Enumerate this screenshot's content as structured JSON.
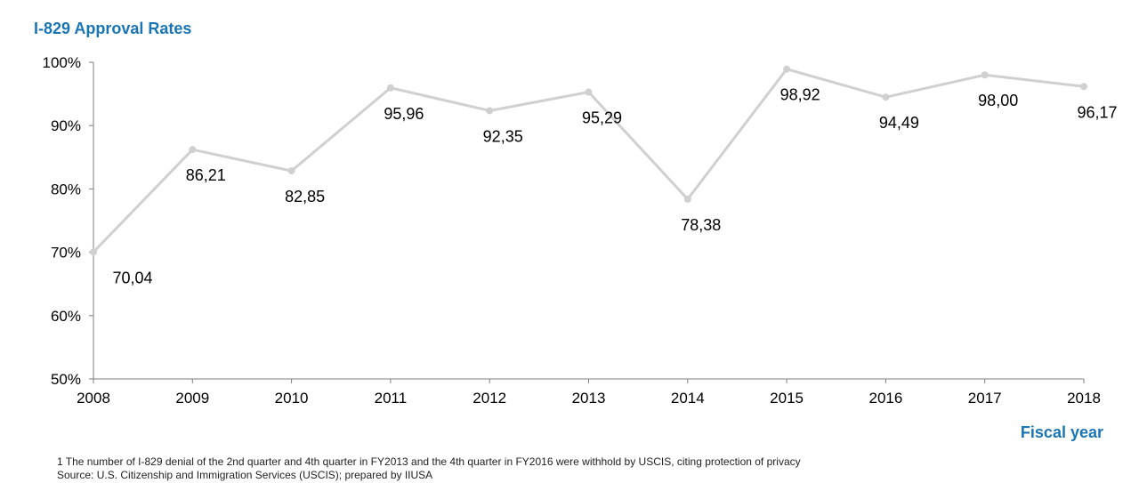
{
  "chart_data": {
    "type": "line",
    "title": "I-829 Approval Rates",
    "xlabel": "Fiscal year",
    "ylabel": "",
    "categories": [
      "2008",
      "2009",
      "2010",
      "2011",
      "2012",
      "2013",
      "2014",
      "2015",
      "2016",
      "2017",
      "2018"
    ],
    "series": [
      {
        "values": [
          70.04,
          86.21,
          82.85,
          95.96,
          92.35,
          95.29,
          78.38,
          98.92,
          94.49,
          98.0,
          96.17
        ],
        "data_labels": [
          "70,04",
          "86,21",
          "82,85",
          "95,96",
          "92,35",
          "95,29",
          "78,38",
          "98,92",
          "94,49",
          "98,00",
          "96,17"
        ],
        "color": "#d0d0d0"
      }
    ],
    "ylim": [
      50,
      100
    ],
    "yticks": [
      50,
      60,
      70,
      80,
      90,
      100
    ],
    "ytick_labels": [
      "50%",
      "60%",
      "70%",
      "80%",
      "90%",
      "100%"
    ],
    "grid": false,
    "legend": "none"
  },
  "footnotes": {
    "note1": "1 The number of I-829 denial of the 2nd quarter and 4th quarter in FY2013 and the 4th quarter in FY2016 were withhold by USCIS, citing protection of privacy",
    "source": "Source: U.S. Citizenship and Immigration Services (USCIS);  prepared  by IIUSA"
  }
}
